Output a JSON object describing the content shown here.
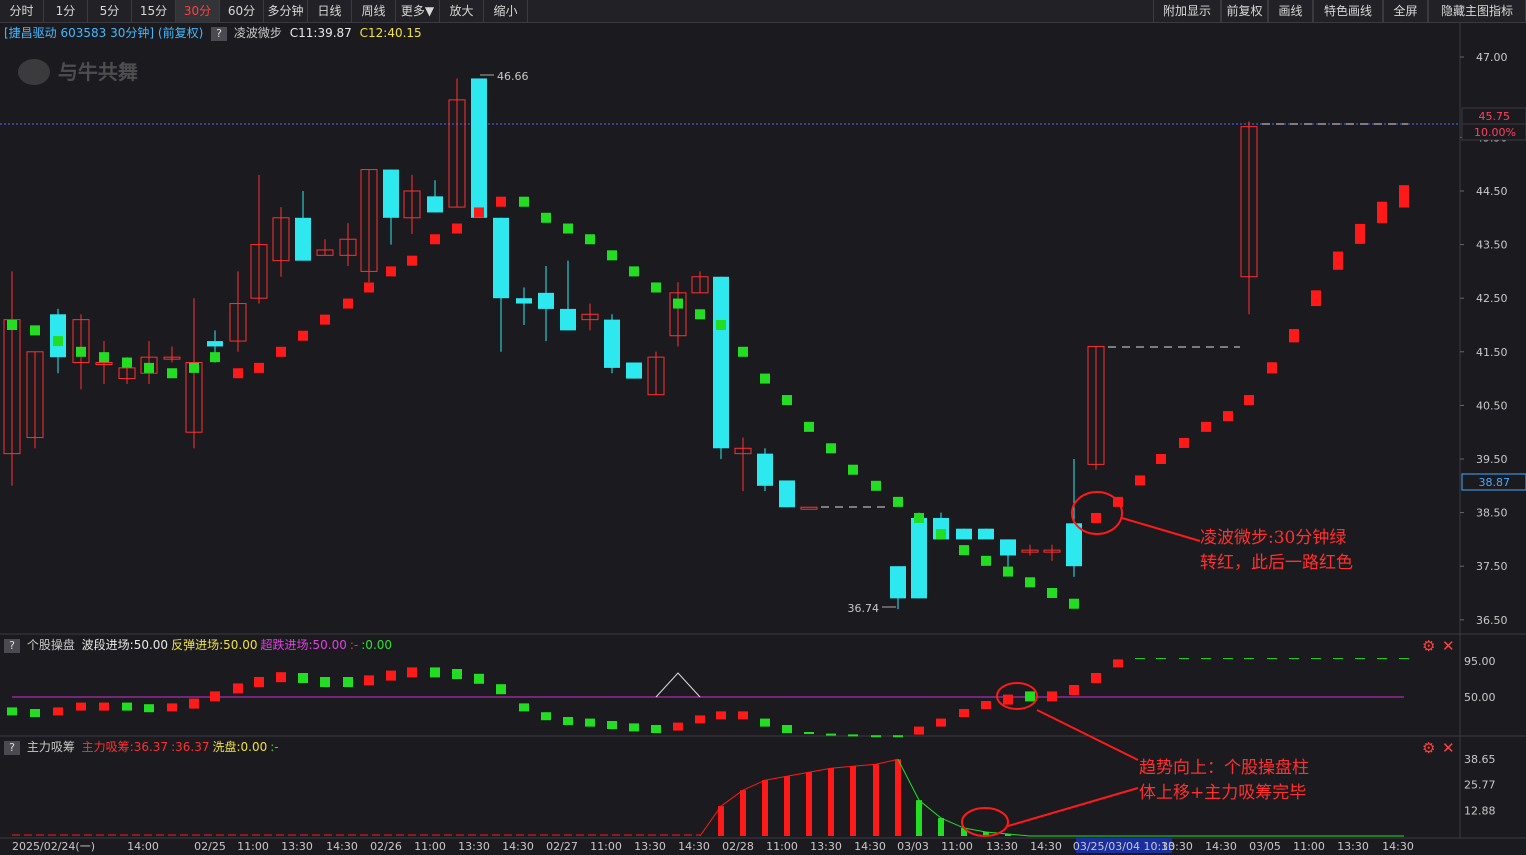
{
  "toolbar": {
    "left": [
      "分时",
      "1分",
      "5分",
      "15分",
      "30分",
      "60分",
      "多分钟",
      "日线",
      "周线",
      "更多▼",
      "放大",
      "缩小"
    ],
    "active_index": 4,
    "right": [
      "附加显示",
      "前复权",
      "画线",
      "特色画线",
      "全屏",
      "隐藏主图指标"
    ]
  },
  "main": {
    "stock_label": "[捷昌驱动 603583 30分钟] (前复权)",
    "indicator_name": "凌波微步",
    "c1": "C11:39.87",
    "c2": "C12:40.15",
    "watermark": "与牛共舞",
    "high_label": "46.66",
    "low_label": "36.74",
    "yaxis": [
      "47.00",
      "45.50",
      "44.50",
      "43.50",
      "42.50",
      "41.50",
      "40.50",
      "39.50",
      "38.50",
      "37.50",
      "36.50"
    ],
    "price_badge": "45.75",
    "pct_badge": "10.00%",
    "cursor_badge": "38.87"
  },
  "panel1": {
    "title": "个股操盘",
    "items": [
      {
        "text": "波段进场:50.00",
        "color": "#e8e8e8"
      },
      {
        "text": "反弹进场:50.00",
        "color": "#f0e040"
      },
      {
        "text": "超跌进场:50.00",
        "color": "#e040e0"
      },
      {
        "text": ":-",
        "color": "#ff3030"
      },
      {
        "text": ":0.00",
        "color": "#30e030"
      }
    ],
    "yaxis": [
      "95.00",
      "50.00"
    ]
  },
  "panel2": {
    "title": "主力吸筹",
    "items": [
      {
        "text": "主力吸筹:36.37",
        "color": "#ff3030"
      },
      {
        "text": ":36.37",
        "color": "#ff3030"
      },
      {
        "text": "洗盘:0.00",
        "color": "#f0e040"
      },
      {
        "text": ":-",
        "color": "#30e030"
      }
    ],
    "yaxis": [
      "38.65",
      "25.77",
      "12.88"
    ]
  },
  "xaxis": {
    "labels": [
      "2025/02/24(一)",
      "14:00",
      "02/25",
      "11:00",
      "13:30",
      "14:30",
      "02/26",
      "11:00",
      "13:30",
      "14:30",
      "02/27",
      "11:00",
      "13:30",
      "14:30",
      "02/28",
      "11:00",
      "13:30",
      "14:30",
      "03/03",
      "11:00",
      "13:30",
      "14:30",
      "03/25/03/04 10:30",
      "13:30",
      "14:30",
      "03/05",
      "11:00",
      "13:30",
      "14:30"
    ]
  },
  "annotations": {
    "note1": [
      "凌波微步:30分钟绿",
      "转红，此后一路红色"
    ],
    "note2": [
      "趋势向上：个股操盘柱",
      "体上移+主力吸筹完毕"
    ]
  },
  "colors": {
    "up": "#ff2020",
    "down": "#2ee8f0",
    "green": "#22dd22",
    "red": "#ff1a1a"
  }
}
